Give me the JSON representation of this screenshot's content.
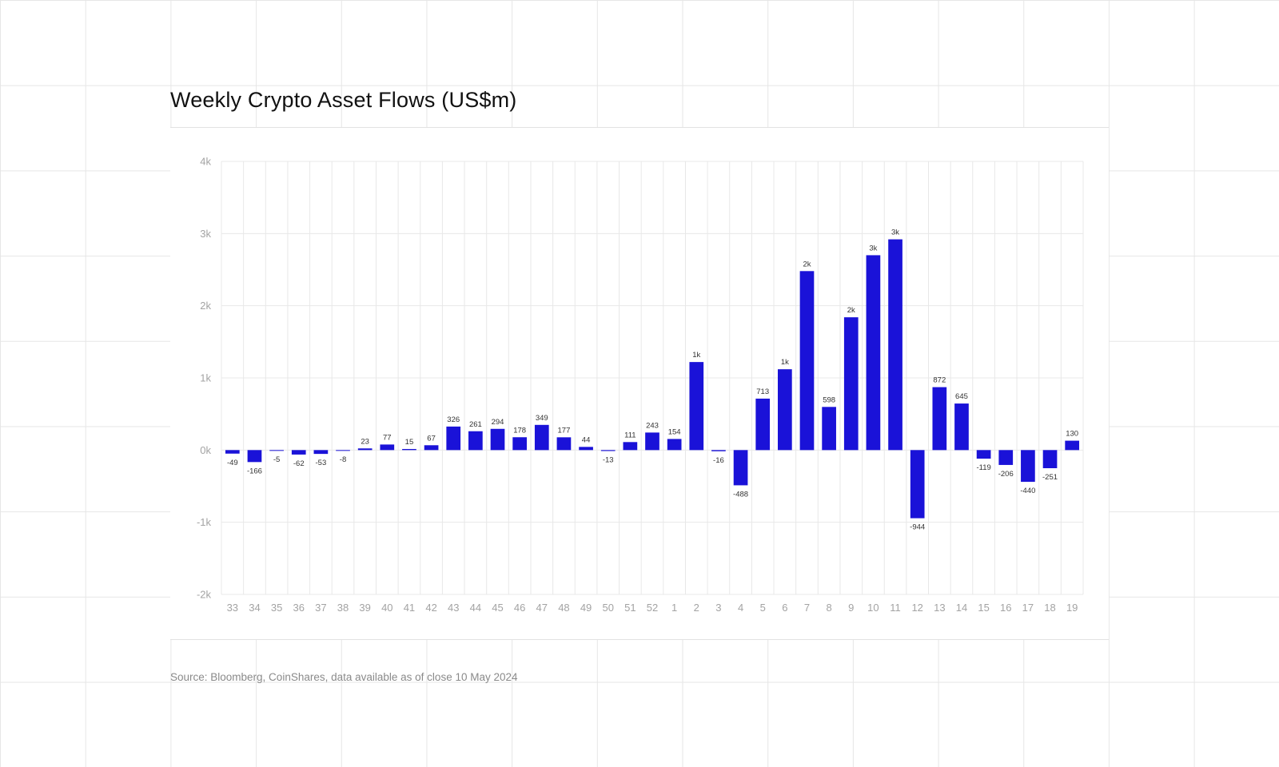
{
  "title": "Weekly Crypto Asset Flows (US$m)",
  "source": "Source: Bloomberg, CoinShares, data available as of close 10 May 2024",
  "colors": {
    "bar": "#1a12d8",
    "grid": "#e8e8e8"
  },
  "chart_data": {
    "type": "bar",
    "title": "Weekly Crypto Asset Flows (US$m)",
    "xlabel": "",
    "ylabel": "",
    "ylim": [
      -2000,
      4000
    ],
    "yticks": [
      4000,
      3000,
      2000,
      1000,
      0,
      -1000,
      -2000
    ],
    "ytick_labels": [
      "4k",
      "3k",
      "2k",
      "1k",
      "0k",
      "-1k",
      "-2k"
    ],
    "grid": true,
    "legend": "none",
    "categories": [
      "33",
      "34",
      "35",
      "36",
      "37",
      "38",
      "39",
      "40",
      "41",
      "42",
      "43",
      "44",
      "45",
      "46",
      "47",
      "48",
      "49",
      "50",
      "51",
      "52",
      "1",
      "2",
      "3",
      "4",
      "5",
      "6",
      "7",
      "8",
      "9",
      "10",
      "11",
      "12",
      "13",
      "14",
      "15",
      "16",
      "17",
      "18",
      "19"
    ],
    "values": [
      -49,
      -166,
      -5,
      -62,
      -53,
      -8,
      23,
      77,
      15,
      67,
      326,
      261,
      294,
      178,
      349,
      177,
      44,
      -13,
      111,
      243,
      154,
      1220,
      -16,
      -488,
      713,
      1120,
      2480,
      598,
      1840,
      2700,
      2920,
      -944,
      872,
      645,
      -119,
      -206,
      -440,
      -251,
      130
    ],
    "value_labels": [
      "-49",
      "-166",
      "-5",
      "-62",
      "-53",
      "-8",
      "23",
      "77",
      "15",
      "67",
      "326",
      "261",
      "294",
      "178",
      "349",
      "177",
      "44",
      "-13",
      "111",
      "243",
      "154",
      "1k",
      "-16",
      "-488",
      "713",
      "1k",
      "2k",
      "598",
      "2k",
      "3k",
      "3k",
      "-944",
      "872",
      "645",
      "-119",
      "-206",
      "-440",
      "-251",
      "130"
    ]
  }
}
